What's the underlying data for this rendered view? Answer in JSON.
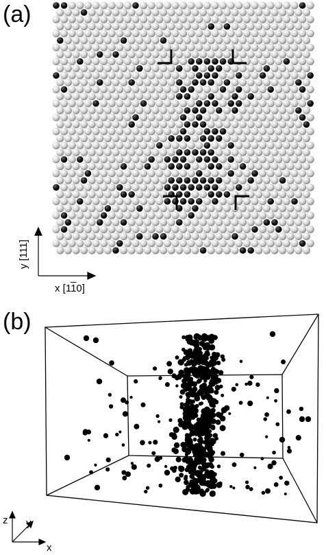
{
  "panel_a": {
    "label": "(a)",
    "axis_y_label": "y [111]",
    "axis_x_label_prefix": "x [1",
    "axis_x_label_bar": "1",
    "axis_x_label_suffix": "0]",
    "colors": {
      "host_atom": "#cfcfcf",
      "solute_atom": "#111111",
      "bracket": "#000000"
    }
  },
  "panel_b": {
    "label": "(b)",
    "axis_z": "z",
    "axis_y": "y",
    "axis_x": "x",
    "colors": {
      "atom": "#000000",
      "box_edge": "#000000"
    }
  }
}
